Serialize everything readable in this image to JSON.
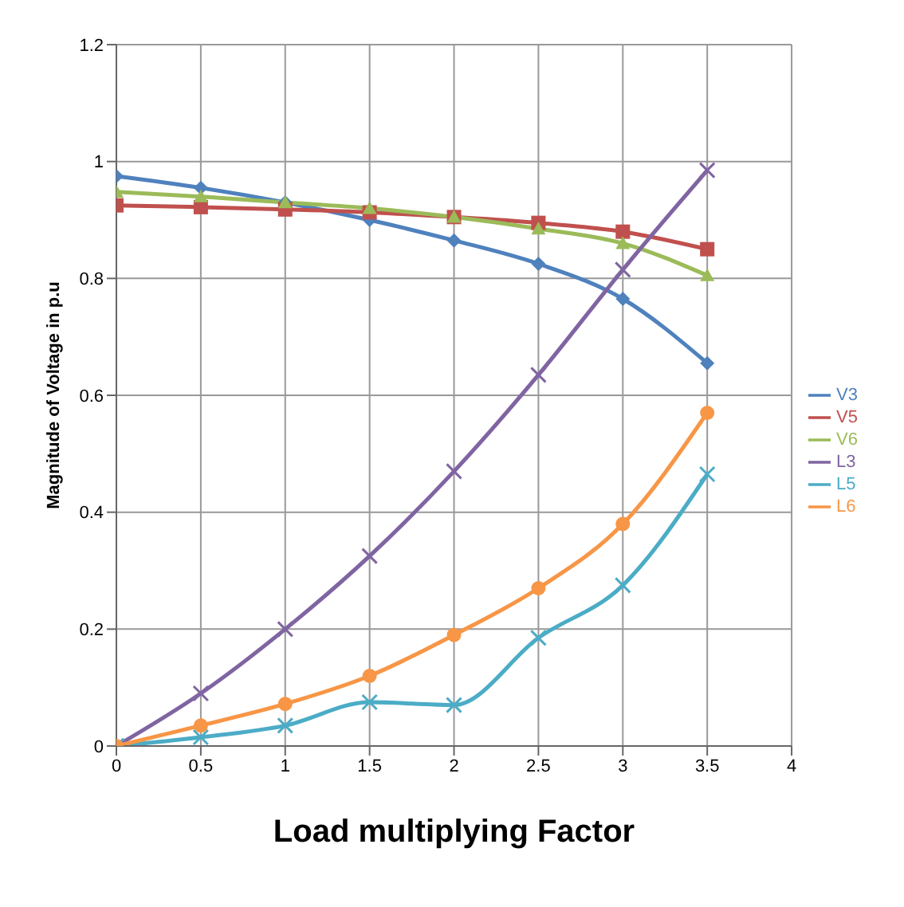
{
  "chart_data": {
    "type": "line",
    "xlabel": "Load multiplying Factor",
    "ylabel": "Magnitude of Voltage in p.u",
    "x": [
      0,
      0.5,
      1,
      1.5,
      2,
      2.5,
      3,
      3.5
    ],
    "series": [
      {
        "name": "V3",
        "color": "#4f81bd",
        "marker": "diamond",
        "values": [
          0.975,
          0.955,
          0.93,
          0.9,
          0.865,
          0.825,
          0.765,
          0.655
        ]
      },
      {
        "name": "V5",
        "color": "#c0504d",
        "marker": "square",
        "values": [
          0.925,
          0.922,
          0.918,
          0.913,
          0.905,
          0.895,
          0.88,
          0.85
        ]
      },
      {
        "name": "V6",
        "color": "#9bbb59",
        "marker": "triangle",
        "values": [
          0.948,
          0.94,
          0.93,
          0.92,
          0.905,
          0.885,
          0.86,
          0.805
        ]
      },
      {
        "name": "L3",
        "color": "#8064a2",
        "marker": "cross",
        "values": [
          0,
          0.09,
          0.2,
          0.325,
          0.47,
          0.635,
          0.815,
          0.985
        ]
      },
      {
        "name": "L5",
        "color": "#4bacc6",
        "marker": "cross",
        "values": [
          0,
          0.015,
          0.035,
          0.075,
          0.07,
          0.185,
          0.275,
          0.465
        ]
      },
      {
        "name": "L6",
        "color": "#f79646",
        "marker": "circle",
        "values": [
          0,
          0.035,
          0.072,
          0.12,
          0.19,
          0.27,
          0.38,
          0.57
        ]
      }
    ],
    "xlim": [
      0,
      4
    ],
    "xticks": [
      0,
      0.5,
      1,
      1.5,
      2,
      2.5,
      3,
      3.5,
      4
    ],
    "ylim": [
      0,
      1.2
    ],
    "yticks": [
      0,
      0.2,
      0.4,
      0.6,
      0.8,
      1,
      1.2
    ],
    "grid": true,
    "legend": "right",
    "line_style": "solid"
  }
}
